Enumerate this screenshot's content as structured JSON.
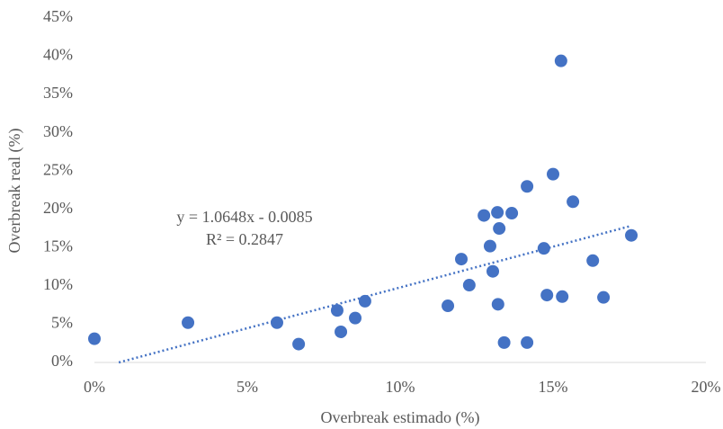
{
  "chart_data": {
    "type": "scatter",
    "x_label": "Overbreak estimado (%)",
    "y_label": "Overbreak real (%)",
    "series": [
      {
        "color": "#4472c4",
        "x": [
          0,
          3.06,
          5.97,
          6.68,
          7.94,
          8.06,
          8.53,
          8.85,
          11.56,
          12.0,
          12.26,
          12.74,
          13.18,
          13.24,
          13.2,
          13.4,
          12.94,
          13.03,
          14.15,
          14.15,
          13.65,
          14.7,
          14.8,
          15.0,
          15.26,
          15.3,
          15.65,
          16.3,
          16.65,
          17.56
        ],
        "values": [
          3.1,
          5.2,
          5.2,
          2.4,
          6.8,
          4.0,
          5.8,
          8.0,
          7.4,
          13.5,
          10.1,
          19.2,
          19.6,
          17.5,
          7.6,
          2.6,
          15.2,
          11.9,
          23.0,
          2.6,
          19.5,
          14.9,
          8.8,
          24.6,
          39.4,
          8.6,
          21.0,
          13.3,
          8.5,
          16.6
        ]
      }
    ],
    "trendline": {
      "slope": 1.0648,
      "intercept": -0.85,
      "equation": "y = 1.0648x - 0.0085",
      "r2": "R² = 0.2847"
    },
    "xlim": [
      0,
      20
    ],
    "ylim": [
      0,
      45
    ],
    "xticks": [
      {
        "value": 0,
        "label": "0%"
      },
      {
        "value": 5,
        "label": "5%"
      },
      {
        "value": 10,
        "label": "10%"
      },
      {
        "value": 15,
        "label": "15%"
      },
      {
        "value": 20,
        "label": "20%"
      }
    ],
    "yticks": [
      {
        "value": 0,
        "label": "0%"
      },
      {
        "value": 5,
        "label": "5%"
      },
      {
        "value": 10,
        "label": "10%"
      },
      {
        "value": 15,
        "label": "15%"
      },
      {
        "value": 20,
        "label": "20%"
      },
      {
        "value": 25,
        "label": "25%"
      },
      {
        "value": 30,
        "label": "30%"
      },
      {
        "value": 35,
        "label": "35%"
      },
      {
        "value": 40,
        "label": "40%"
      },
      {
        "value": 45,
        "label": "45%"
      }
    ]
  }
}
